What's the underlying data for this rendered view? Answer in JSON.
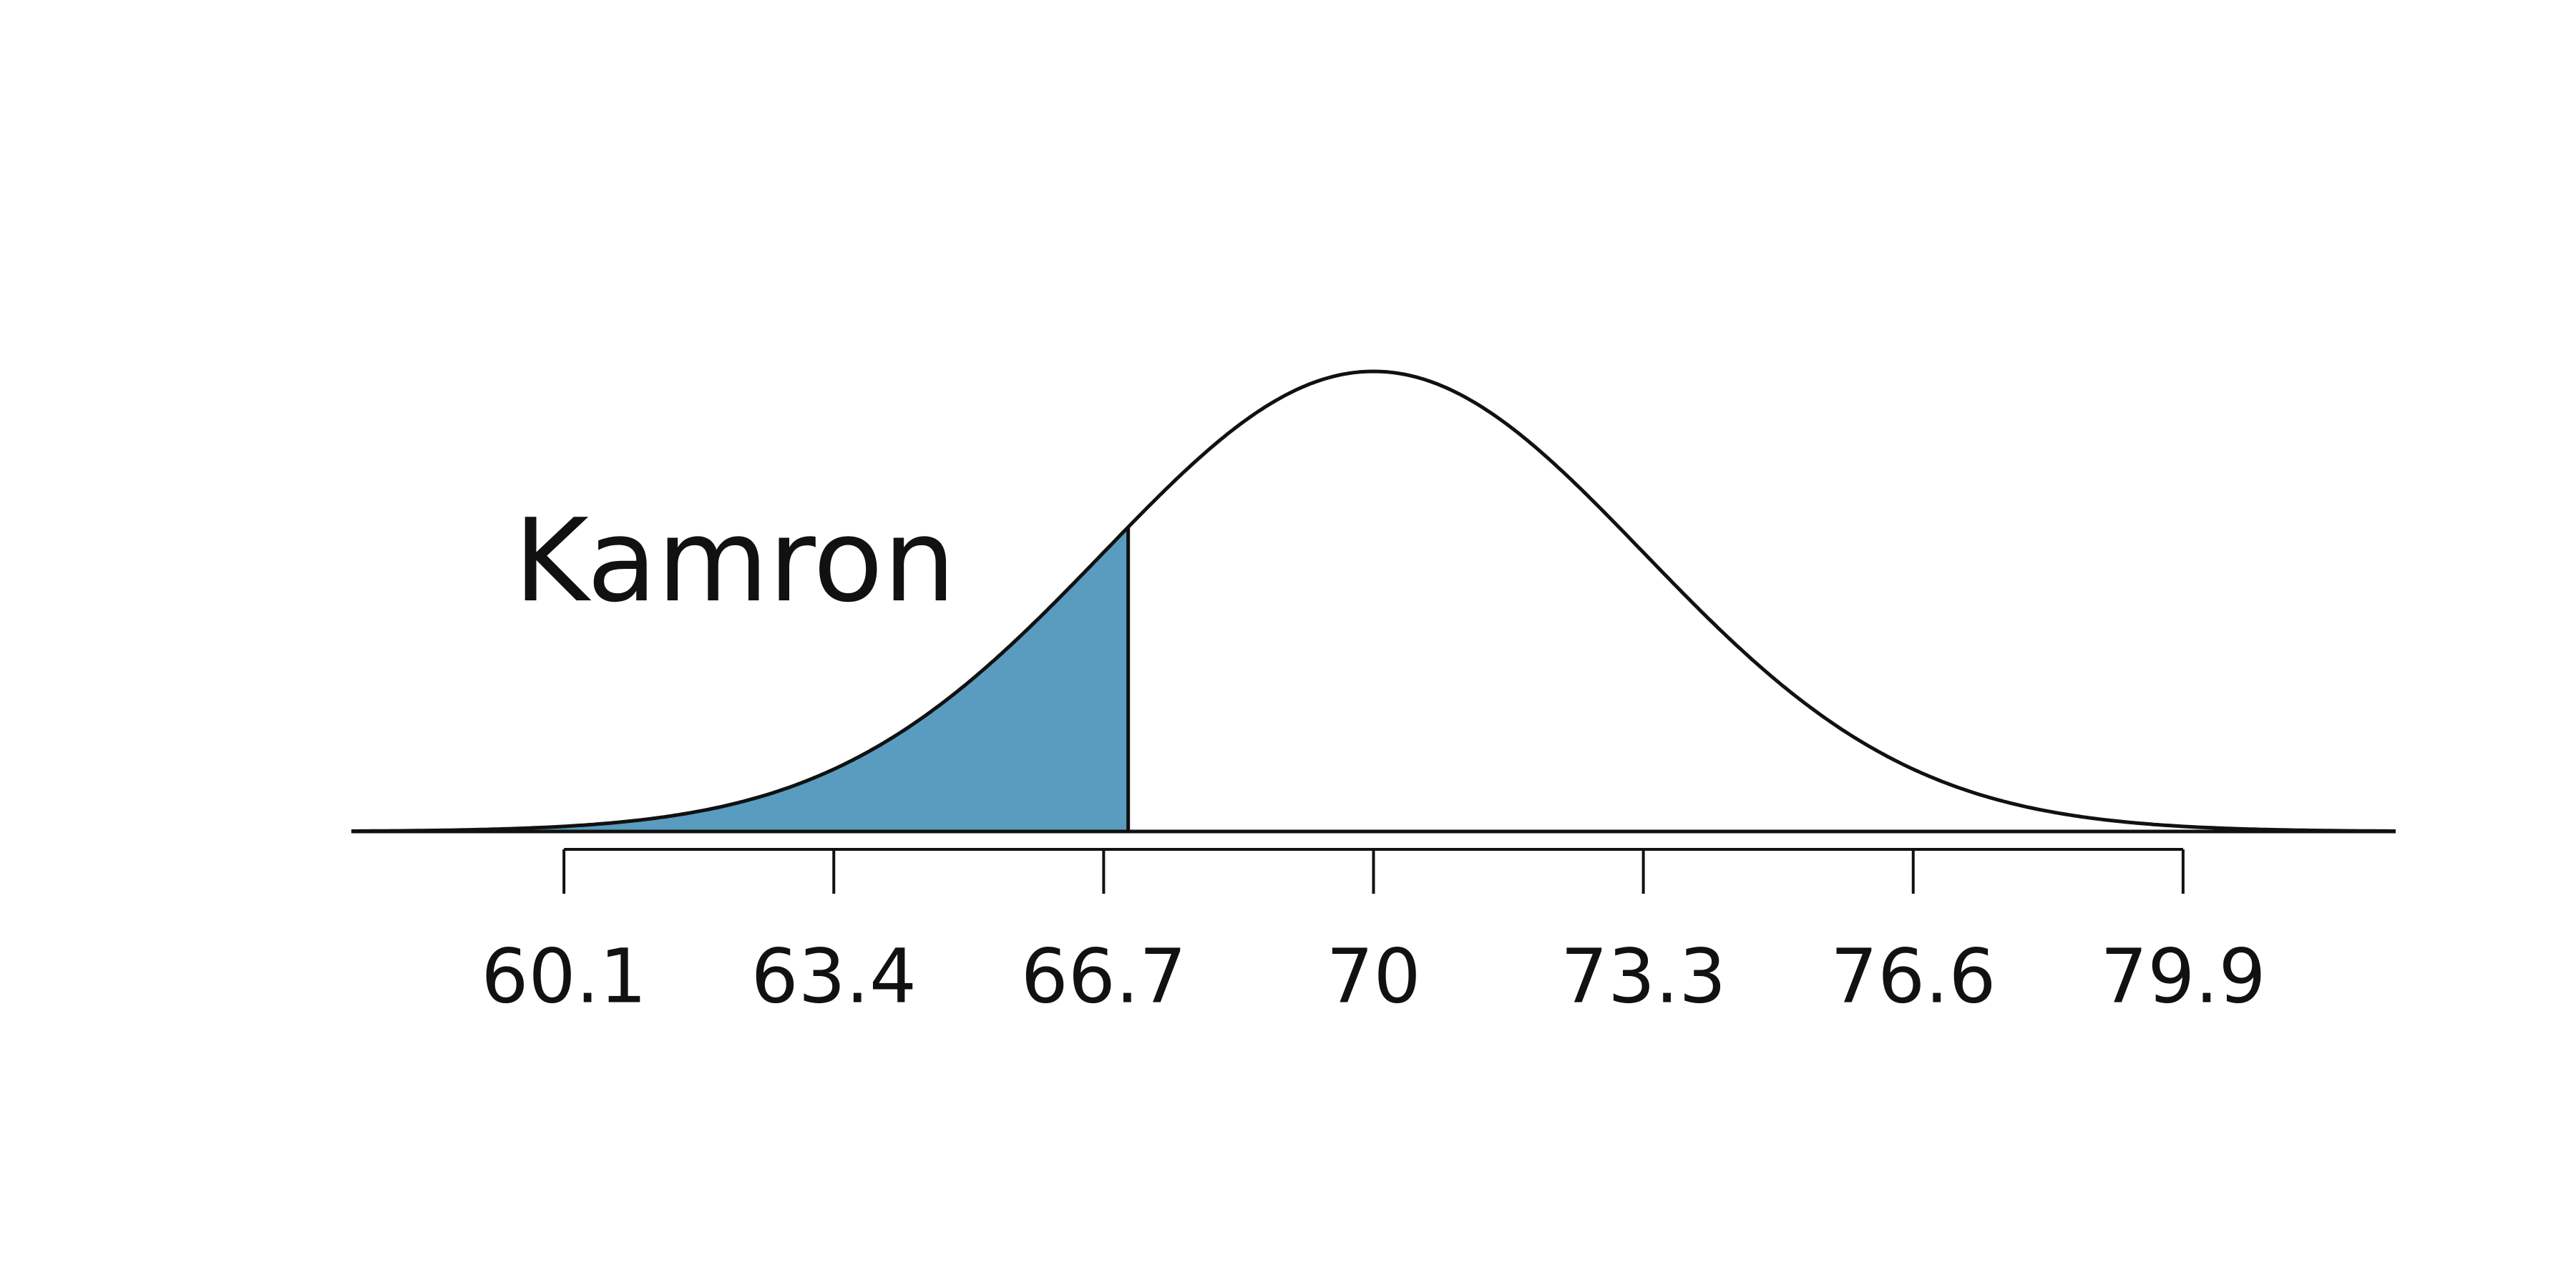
{
  "chart_data": {
    "type": "normal",
    "annotation": "Kamron",
    "mean": 70,
    "sd": 3.3,
    "shade_to": 67,
    "color": "#599cbf",
    "xlim": [
      57.5,
      82.5
    ],
    "xticks": [
      60.1,
      63.4,
      66.7,
      70,
      73.3,
      76.6,
      79.9
    ]
  }
}
